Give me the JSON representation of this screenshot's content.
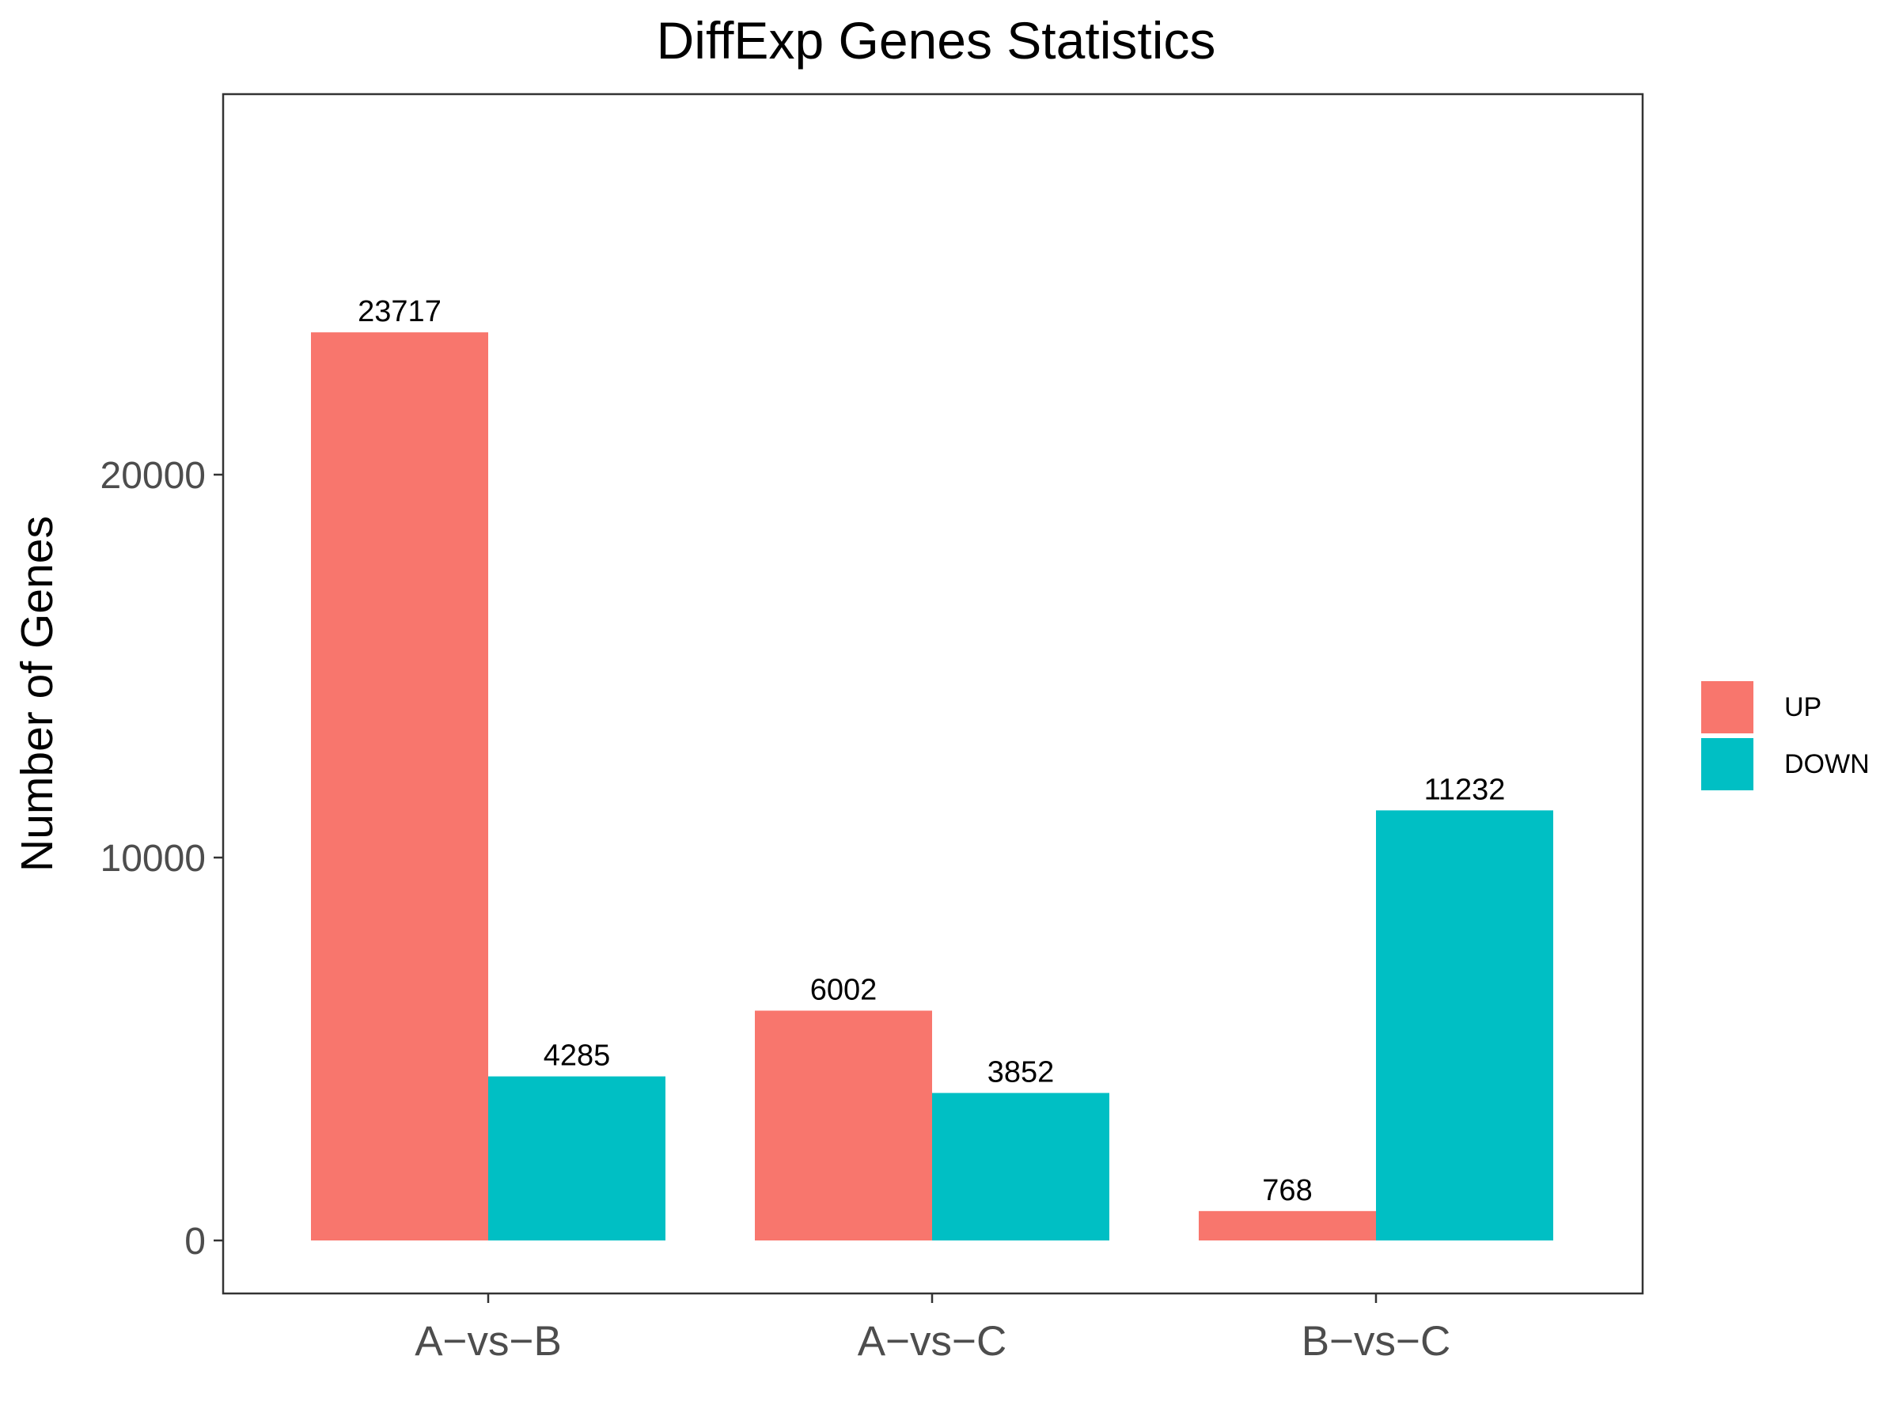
{
  "chart_data": {
    "type": "bar",
    "title": "DiffExp Genes Statistics",
    "xlabel": "",
    "ylabel": "Number of Genes",
    "categories": [
      "A−vs−B",
      "A−vs−C",
      "B−vs−C"
    ],
    "series": [
      {
        "name": "UP",
        "color": "#F8766D",
        "values": [
          23717,
          6002,
          768
        ]
      },
      {
        "name": "DOWN",
        "color": "#00BFC4",
        "values": [
          4285,
          3852,
          11232
        ]
      }
    ],
    "yticks": [
      0,
      10000,
      20000
    ],
    "ytick_labels": [
      "0",
      "10000",
      "20000"
    ],
    "ylim": [
      -1400,
      30000
    ],
    "grid": false,
    "legend": "right",
    "data_labels": true
  }
}
